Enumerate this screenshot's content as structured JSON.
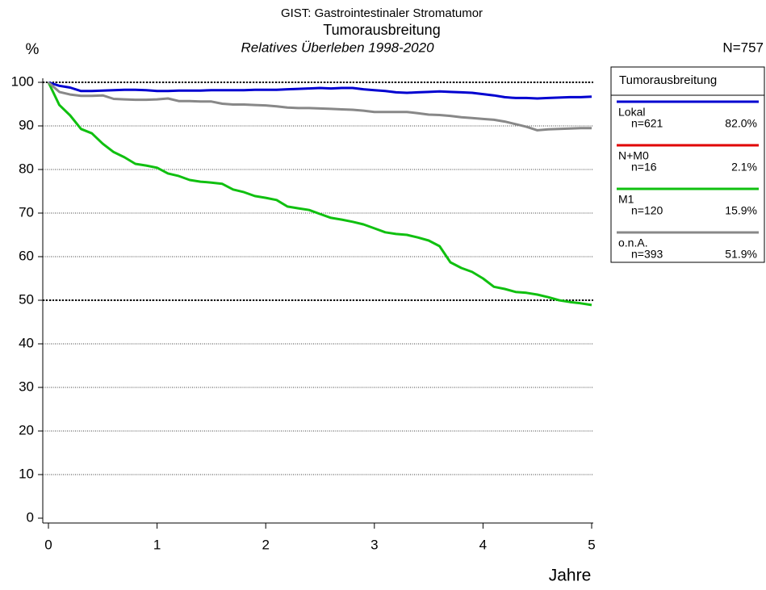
{
  "chart_data": {
    "type": "line",
    "title": "GIST: Gastrointestinaler Stromatumor",
    "subtitle": "Tumorausbreitung",
    "subtitle2": "Relatives Überleben 1998-2020",
    "y_label": "%",
    "x_label": "Jahre",
    "total": "N=757",
    "legend_title": "Tumorausbreitung",
    "x": [
      0,
      0.1,
      0.2,
      0.3,
      0.4,
      0.5,
      0.6,
      0.7,
      0.8,
      0.9,
      1,
      1.1,
      1.2,
      1.3,
      1.4,
      1.5,
      1.6,
      1.7,
      1.8,
      1.9,
      2,
      2.1,
      2.2,
      2.3,
      2.4,
      2.5,
      2.6,
      2.7,
      2.8,
      2.9,
      3,
      3.1,
      3.2,
      3.3,
      3.4,
      3.5,
      3.6,
      3.7,
      3.8,
      3.9,
      4,
      4.1,
      4.2,
      4.3,
      4.4,
      4.5,
      4.6,
      4.7,
      4.8,
      4.9,
      5
    ],
    "series": [
      {
        "name": "Lokal",
        "n": "n=621",
        "pct": "82.0%",
        "color": "#0000d0",
        "values": [
          100,
          99.2,
          98.8,
          98.0,
          98.0,
          98.1,
          98.2,
          98.3,
          98.3,
          98.2,
          98.0,
          98.0,
          98.1,
          98.1,
          98.1,
          98.2,
          98.2,
          98.2,
          98.2,
          98.3,
          98.3,
          98.3,
          98.4,
          98.5,
          98.6,
          98.7,
          98.6,
          98.7,
          98.7,
          98.4,
          98.2,
          98.0,
          97.7,
          97.6,
          97.7,
          97.8,
          97.9,
          97.8,
          97.7,
          97.6,
          97.3,
          97.0,
          96.6,
          96.4,
          96.4,
          96.3,
          96.4,
          96.5,
          96.6,
          96.6,
          96.7
        ]
      },
      {
        "name": "N+M0",
        "n": "n=16",
        "pct": "2.1%",
        "color": "#e00000",
        "values": [
          null,
          null,
          null,
          null,
          null,
          null,
          null,
          null,
          null,
          null,
          null,
          null,
          null,
          null,
          null,
          null,
          null,
          null,
          null,
          null,
          null,
          null,
          null,
          null,
          null,
          null,
          null,
          null,
          null,
          null,
          null,
          null,
          null,
          null,
          null,
          null,
          null,
          null,
          null,
          null,
          null,
          null,
          null,
          null,
          null,
          null,
          null,
          null,
          null,
          null,
          null
        ]
      },
      {
        "name": "M1",
        "n": "n=120",
        "pct": "15.9%",
        "color": "#10c010",
        "values": [
          100,
          94.8,
          92.4,
          89.3,
          88.3,
          85.9,
          84.0,
          82.8,
          81.3,
          80.9,
          80.4,
          79.1,
          78.5,
          77.6,
          77.2,
          77.0,
          76.7,
          75.4,
          74.8,
          73.9,
          73.5,
          73.0,
          71.5,
          71.1,
          70.7,
          69.8,
          68.9,
          68.5,
          68.0,
          67.4,
          66.5,
          65.6,
          65.2,
          65.0,
          64.4,
          63.7,
          62.4,
          58.7,
          57.4,
          56.5,
          55.0,
          53.1,
          52.6,
          51.9,
          51.7,
          51.3,
          50.7,
          50.0,
          49.6,
          49.3,
          48.9
        ]
      },
      {
        "name": "o.n.A.",
        "n": "n=393",
        "pct": "51.9%",
        "color": "#888888",
        "values": [
          100,
          97.8,
          97.2,
          96.9,
          96.9,
          97.0,
          96.2,
          96.1,
          96.0,
          96.0,
          96.1,
          96.3,
          95.7,
          95.7,
          95.6,
          95.6,
          95.1,
          94.9,
          94.9,
          94.8,
          94.7,
          94.5,
          94.2,
          94.1,
          94.1,
          94.0,
          93.9,
          93.8,
          93.7,
          93.5,
          93.2,
          93.2,
          93.2,
          93.2,
          92.9,
          92.6,
          92.5,
          92.3,
          92.0,
          91.8,
          91.6,
          91.4,
          91.0,
          90.4,
          89.8,
          89.0,
          89.2,
          89.3,
          89.4,
          89.5,
          89.5
        ]
      }
    ],
    "xlim": [
      0,
      5
    ],
    "ylim": [
      0,
      100
    ],
    "xticks": [
      0,
      1,
      2,
      3,
      4,
      5
    ],
    "yticks": [
      0,
      10,
      20,
      30,
      40,
      50,
      60,
      70,
      80,
      90,
      100
    ],
    "ref_lines": [
      50,
      100
    ],
    "grid": true
  }
}
